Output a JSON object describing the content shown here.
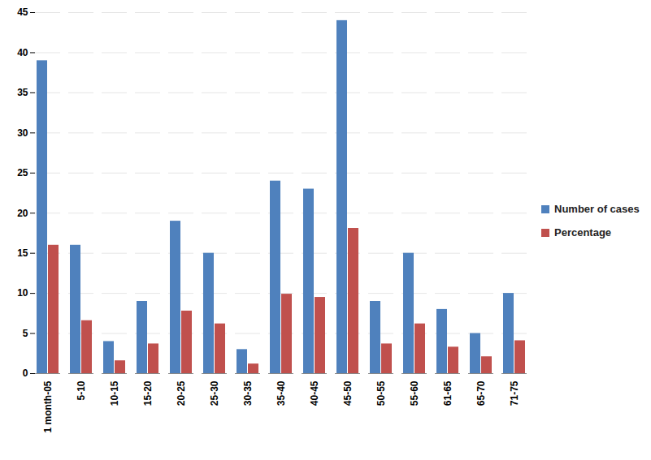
{
  "chart_data": {
    "type": "bar",
    "categories": [
      "1 month-05",
      "5-10",
      "10-15",
      "15-20",
      "20-25",
      "25-30",
      "30-35",
      "35-40",
      "40-45",
      "45-50",
      "50-55",
      "55-60",
      "61-65",
      "65-70",
      "71-75"
    ],
    "series": [
      {
        "name": "Number of cases",
        "color": "#4f81bd",
        "values": [
          39,
          16,
          4,
          9,
          19,
          15,
          3,
          24,
          23,
          44,
          9,
          15,
          8,
          5,
          10
        ]
      },
      {
        "name": "Percentage",
        "color": "#c0504d",
        "values": [
          16.0,
          6.6,
          1.6,
          3.7,
          7.8,
          6.2,
          1.2,
          9.9,
          9.5,
          18.1,
          3.7,
          6.2,
          3.3,
          2.1,
          4.1
        ]
      }
    ],
    "ylim": [
      0,
      45
    ],
    "yticks": [
      0,
      5,
      10,
      15,
      20,
      25,
      30,
      35,
      40,
      45
    ],
    "grid": true,
    "legend": "right"
  }
}
